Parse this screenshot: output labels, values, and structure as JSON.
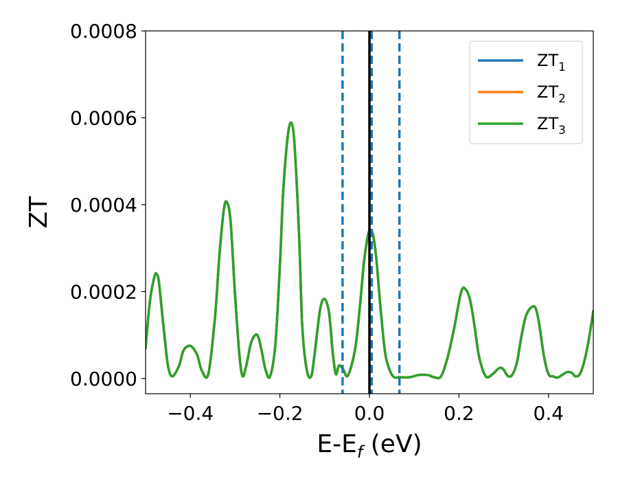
{
  "chart_data": {
    "type": "line",
    "xlabel": "E-E",
    "xlabel_sub": "f",
    "xlabel_unit": " (eV)",
    "ylabel": "ZT",
    "xlim": [
      -0.5,
      0.5
    ],
    "ylim": [
      -3.5e-05,
      0.0008
    ],
    "grid": false,
    "legend_position": "top-right",
    "x_ticks": [
      -0.4,
      -0.2,
      0.0,
      0.2,
      0.4
    ],
    "x_tick_labels": [
      "−0.4",
      "−0.2",
      "0.0",
      "0.2",
      "0.4"
    ],
    "y_ticks": [
      0.0,
      0.0002,
      0.0004,
      0.0006,
      0.0008
    ],
    "y_tick_labels": [
      "0.0000",
      "0.0002",
      "0.0004",
      "0.0006",
      "0.0008"
    ],
    "vlines": [
      {
        "x": -0.06,
        "style": "dashed",
        "color": "#1f77b4"
      },
      {
        "x": 0.005,
        "style": "dashed",
        "color": "#1f77b4"
      },
      {
        "x": 0.067,
        "style": "dashed",
        "color": "#1f77b4"
      },
      {
        "x": 0.0,
        "style": "solid",
        "color": "#000000"
      }
    ],
    "series": [
      {
        "name": "ZT",
        "sub": "1",
        "color": "#1f77b4"
      },
      {
        "name": "ZT",
        "sub": "2",
        "color": "#ff7f0e"
      },
      {
        "name": "ZT",
        "sub": "3",
        "color": "#2ca02c"
      }
    ],
    "curve": {
      "x": [
        -0.5,
        -0.49,
        -0.48,
        -0.475,
        -0.47,
        -0.46,
        -0.45,
        -0.44,
        -0.425,
        -0.415,
        -0.4,
        -0.385,
        -0.375,
        -0.36,
        -0.345,
        -0.335,
        -0.325,
        -0.318,
        -0.31,
        -0.3,
        -0.29,
        -0.283,
        -0.275,
        -0.265,
        -0.255,
        -0.248,
        -0.24,
        -0.232,
        -0.222,
        -0.21,
        -0.2,
        -0.192,
        -0.18,
        -0.17,
        -0.162,
        -0.156,
        -0.15,
        -0.14,
        -0.13,
        -0.122,
        -0.11,
        -0.1,
        -0.09,
        -0.082,
        -0.075,
        -0.068,
        -0.058,
        -0.05,
        -0.04,
        -0.03,
        -0.02,
        -0.012,
        -0.005,
        0.0,
        0.007,
        0.015,
        0.025,
        0.035,
        0.045,
        0.055,
        0.067,
        0.09,
        0.11,
        0.13,
        0.145,
        0.16,
        0.175,
        0.19,
        0.205,
        0.215,
        0.225,
        0.235,
        0.245,
        0.26,
        0.275,
        0.285,
        0.293,
        0.3,
        0.31,
        0.32,
        0.33,
        0.34,
        0.35,
        0.363,
        0.372,
        0.38,
        0.39,
        0.4,
        0.41,
        0.42,
        0.43,
        0.442,
        0.452,
        0.46,
        0.47,
        0.48,
        0.49,
        0.5
      ],
      "y": [
        7e-05,
        0.00018,
        0.000235,
        0.00024,
        0.00022,
        0.00012,
        3e-05,
        5e-06,
        3e-05,
        6.5e-05,
        7.5e-05,
        5.5e-05,
        2e-05,
        1e-05,
        0.00014,
        0.000285,
        0.00039,
        0.000405,
        0.00036,
        0.00019,
        5e-05,
        5e-06,
        3e-05,
        8e-05,
        0.0001,
        9.5e-05,
        6e-05,
        2e-05,
        5e-06,
        8e-05,
        0.00026,
        0.00044,
        0.000575,
        0.00057,
        0.00044,
        0.0003,
        0.00012,
        2e-05,
        5e-06,
        6e-05,
        0.00016,
        0.000183,
        0.00015,
        6e-05,
        1e-05,
        3e-05,
        2e-05,
        5e-06,
        3e-05,
        8e-05,
        0.00018,
        0.00027,
        0.00032,
        0.00034,
        0.000335,
        0.00028,
        0.00016,
        6e-05,
        2e-05,
        3e-06,
        3e-06,
        3e-06,
        8e-06,
        8e-06,
        3e-06,
        5e-06,
        5e-05,
        0.00012,
        0.0002,
        0.000205,
        0.00018,
        0.00012,
        5e-05,
        5e-06,
        1e-05,
        2e-05,
        2.5e-05,
        2e-05,
        5e-06,
        1e-05,
        4e-05,
        0.0001,
        0.000145,
        0.000165,
        0.00016,
        0.00012,
        5e-05,
        1e-05,
        5e-06,
        2e-06,
        8e-06,
        1.5e-05,
        1.3e-05,
        5e-06,
        1e-05,
        4e-05,
        9e-05,
        0.000155
      ]
    }
  }
}
